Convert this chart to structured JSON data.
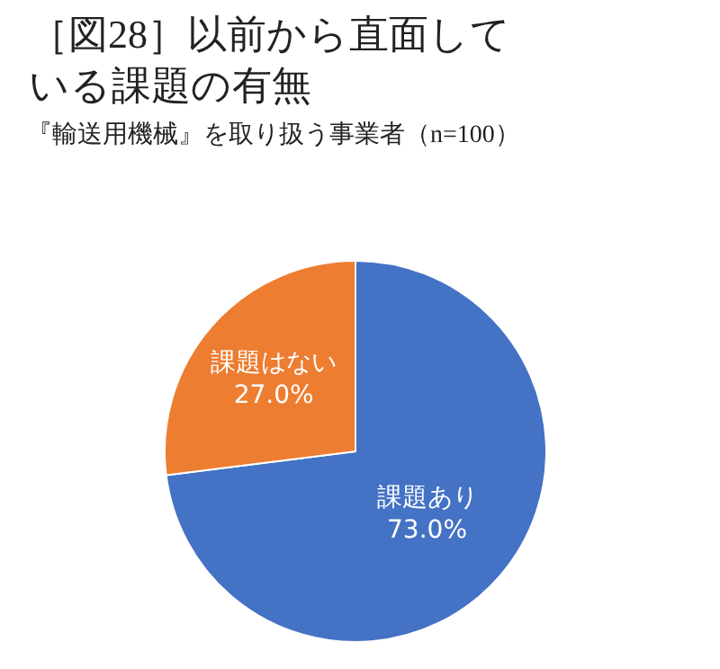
{
  "chart_data": {
    "type": "pie",
    "title": "［図28］以前から直面している課題の有無",
    "subtitle": "『輸送用機械』を取り扱う事業者（n=100）",
    "categories": [
      "課題あり",
      "課題はない"
    ],
    "values": [
      73.0,
      27.0
    ],
    "colors": [
      "#4472c4",
      "#ed7d31"
    ],
    "value_labels": [
      "73.0%",
      "27.0%"
    ],
    "legend": false
  }
}
